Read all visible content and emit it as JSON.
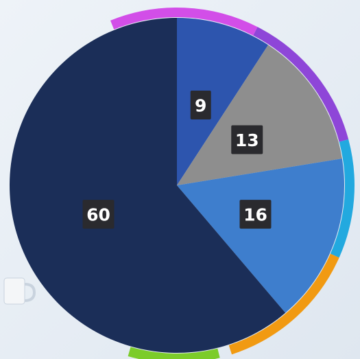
{
  "chart_data": {
    "type": "pie",
    "values": [
      9,
      13,
      16,
      60
    ],
    "colors": [
      "#2d55ae",
      "#8e8e8e",
      "#3e7ecd",
      "#1b2e58"
    ]
  }
}
